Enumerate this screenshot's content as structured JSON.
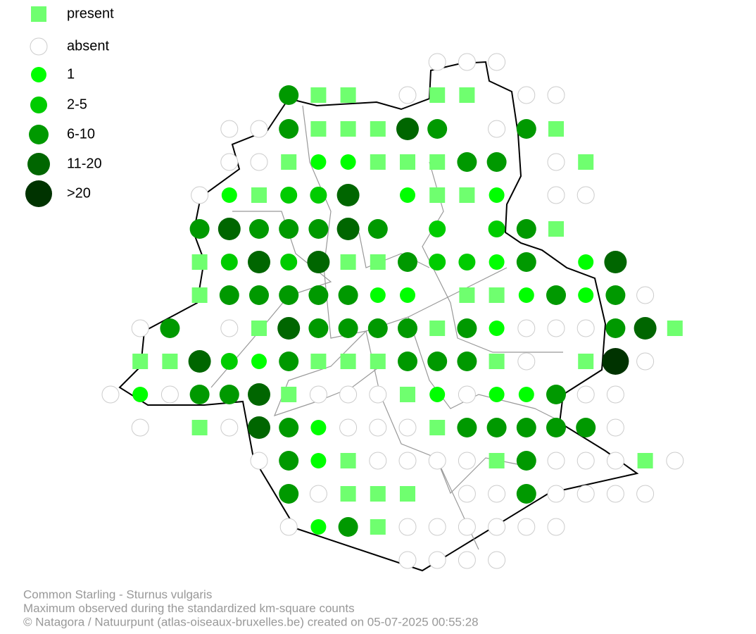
{
  "legend": {
    "items": [
      "present",
      "absent",
      "1",
      "2-5",
      "6-10",
      "11-20",
      ">20"
    ]
  },
  "footer": {
    "lines": [
      "Common Starling - Sturnus vulgaris",
      "Maximum observed during the standardized km-square counts",
      "© Natagora / Natuurpunt (atlas-oiseaux-bruxelles.be) created on 05-07-2025 00:55:28"
    ]
  }
}
